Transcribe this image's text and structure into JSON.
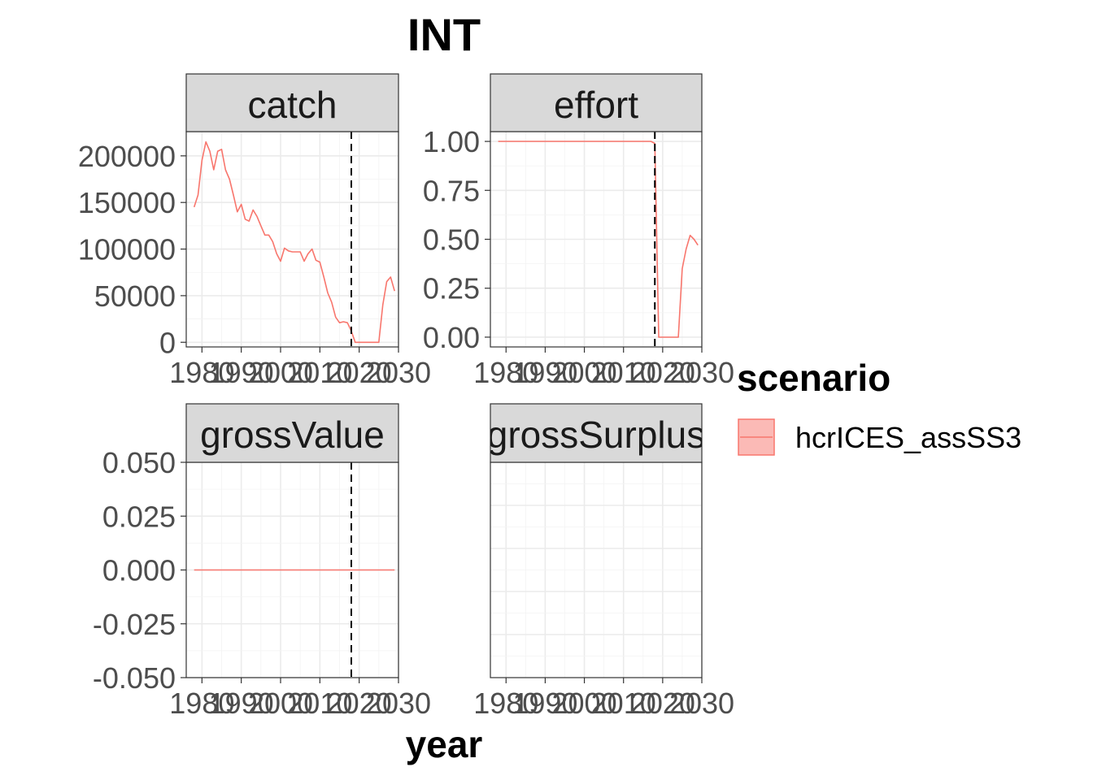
{
  "title": "INT",
  "xlabel": "year",
  "legend": {
    "title": "scenario",
    "items": [
      {
        "label": "hcrICES_assSS3",
        "color": "#f8766d"
      }
    ]
  },
  "colors": {
    "series": "#f8766d",
    "vline": "#000000"
  },
  "chart_data": {
    "type": "line",
    "facets": [
      "catch",
      "effort",
      "grossValue",
      "grossSurplus"
    ],
    "xlim": [
      1976,
      2030
    ],
    "x_ticks": [
      "1980",
      "1990",
      "2000",
      "2010",
      "2020",
      "2030"
    ],
    "vline_x": 2018,
    "grid": true,
    "legend_position": "right",
    "panels": [
      {
        "facet": "catch",
        "ylim": [
          -5000,
          226000
        ],
        "y_ticks": [
          0,
          50000,
          100000,
          150000,
          200000
        ],
        "y_tick_labels": [
          "0",
          "50000",
          "100000",
          "150000",
          "200000"
        ],
        "series": [
          {
            "name": "hcrICES_assSS3",
            "x": [
              1978,
              1979,
              1980,
              1981,
              1982,
              1983,
              1984,
              1985,
              1986,
              1987,
              1988,
              1989,
              1990,
              1991,
              1992,
              1993,
              1994,
              1995,
              1996,
              1997,
              1998,
              1999,
              2000,
              2001,
              2002,
              2003,
              2004,
              2005,
              2006,
              2007,
              2008,
              2009,
              2010,
              2011,
              2012,
              2013,
              2014,
              2015,
              2016,
              2017,
              2018,
              2019,
              2020,
              2021,
              2022,
              2023,
              2024,
              2025,
              2026,
              2027,
              2028,
              2029
            ],
            "y": [
              145000,
              158000,
              195000,
              215000,
              205000,
              185000,
              205000,
              207000,
              185000,
              175000,
              158000,
              140000,
              148000,
              132000,
              130000,
              142000,
              135000,
              125000,
              115000,
              115000,
              108000,
              95000,
              87000,
              101000,
              98000,
              97000,
              97000,
              97000,
              87000,
              95000,
              100000,
              88000,
              86000,
              70000,
              53000,
              43000,
              27000,
              21000,
              22000,
              21000,
              12000,
              0,
              0,
              0,
              0,
              0,
              0,
              0,
              40000,
              65000,
              70000,
              55000
            ]
          }
        ]
      },
      {
        "facet": "effort",
        "ylim": [
          -0.05,
          1.05
        ],
        "y_ticks": [
          0,
          0.25,
          0.5,
          0.75,
          1
        ],
        "y_tick_labels": [
          "0.00",
          "0.25",
          "0.50",
          "0.75",
          "1.00"
        ],
        "series": [
          {
            "name": "hcrICES_assSS3",
            "x": [
              1978,
              1980,
              1985,
              1990,
              1995,
              2000,
              2005,
              2010,
              2015,
              2017,
              2018,
              2019,
              2020,
              2021,
              2022,
              2023,
              2024,
              2025,
              2026,
              2027,
              2028,
              2029
            ],
            "y": [
              1,
              1,
              1,
              1,
              1,
              1,
              1,
              1,
              1,
              1,
              0.99,
              0,
              0,
              0,
              0,
              0,
              0,
              0.35,
              0.45,
              0.52,
              0.5,
              0.47
            ]
          }
        ]
      },
      {
        "facet": "grossValue",
        "ylim": [
          -0.05,
          0.05
        ],
        "y_ticks": [
          -0.05,
          -0.025,
          0,
          0.025,
          0.05
        ],
        "y_tick_labels": [
          "-0.050",
          "-0.025",
          "0.000",
          "0.025",
          "0.050"
        ],
        "series": [
          {
            "name": "hcrICES_assSS3",
            "x": [
              1978,
              2029
            ],
            "y": [
              0,
              0
            ]
          }
        ]
      },
      {
        "facet": "grossSurplus",
        "ylim": null,
        "y_ticks": [],
        "y_tick_labels": [],
        "series": []
      }
    ]
  }
}
